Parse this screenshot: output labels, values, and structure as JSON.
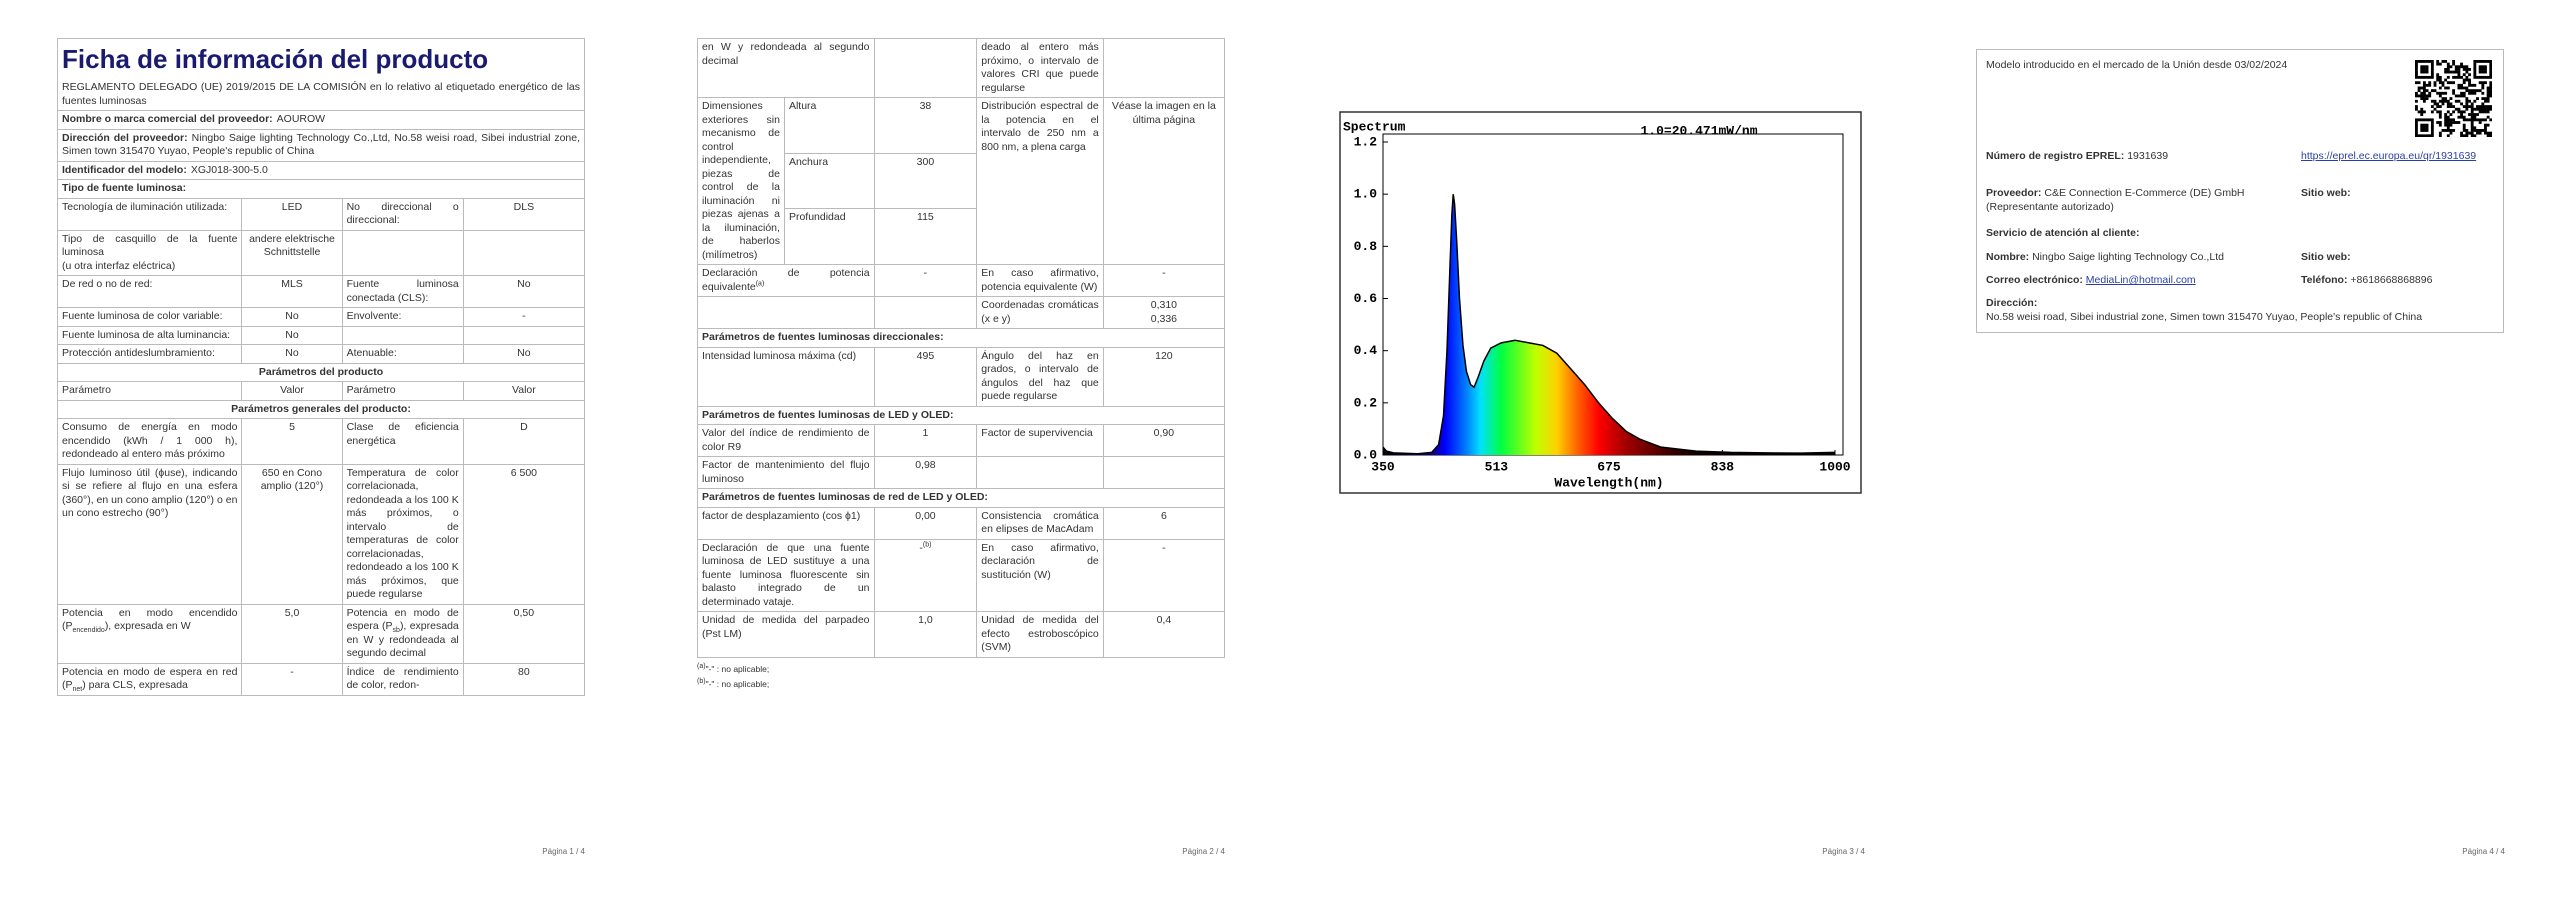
{
  "pages": [
    {
      "title": "Ficha de información del producto",
      "regulation": "REGLAMENTO DELEGADO (UE) 2019/2015 DE LA COMISIÓN en lo relativo al etiquetado energético de las fuentes luminosas",
      "fields": [
        {
          "label": "Nombre o marca comercial del proveedor:",
          "value": "AOUROW"
        },
        {
          "label": "Dirección del proveedor:",
          "value": "Ningbo Saige lighting Technology Co.,Ltd, No.58 weisi road, Sibei industrial zone, Simen town 315470 Yuyao, People's republic of China"
        },
        {
          "label": "Identificador del modelo:",
          "value": "XGJ018-300-5.0"
        }
      ],
      "section": "Tipo de fuente luminosa:",
      "rows": [
        [
          "Tecnología de iluminación utilizada:",
          "LED",
          "No direccional o direccional:",
          "DLS"
        ],
        [
          "Tipo de casquillo de la fuente luminosa\n(u otra interfaz eléctrica)",
          "andere elektrische Schnittstelle",
          null,
          null
        ],
        [
          "De red o no de red:",
          "MLS",
          "Fuente luminosa conectada (CLS):",
          "No"
        ],
        [
          "Fuente luminosa de color variable:",
          "No",
          "Envolvente:",
          "-"
        ],
        [
          "Fuente luminosa de alta luminancia:",
          "No",
          null,
          null
        ],
        [
          "Protección antideslumbramiento:",
          "No",
          "Atenuable:",
          "No"
        ],
        [
          "Parámetros del producto"
        ],
        [
          "Parámetro",
          "Valor",
          "Parámetro",
          "Valor"
        ],
        [
          "Parámetros generales del producto:"
        ],
        [
          "Consumo de energía en modo encendido (kWh / 1 000 h), redondeado al entero más próximo",
          "5",
          "Clase de eficiencia energética",
          "D"
        ],
        [
          "Flujo luminoso útil (ϕuse), indicando si se refiere al flujo en una esfera (360°), en un cono amplio (120°) o en un cono estrecho (90°)",
          "650 en Cono amplio (120°)",
          "Temperatura de color correlacionada, redondeada a los 100 K más próximos, o intervalo de temperaturas de color correlacionadas, redondeado a los 100 K más próximos, que puede regularse",
          "6 500"
        ],
        [
          [
            "Potencia en modo encendido (P",
            {
              "sub": "encendido"
            },
            "), expresada en W"
          ],
          "5,0",
          [
            "Potencia en modo de espera (P",
            {
              "sub": "sb"
            },
            "), expresada en W y redondeada al segundo decimal"
          ],
          "0,50"
        ],
        [
          [
            "Potencia en modo de espera en red (P",
            {
              "sub": "net"
            },
            ") para CLS, expresada"
          ],
          "-",
          "Índice de rendimiento de color, redon-",
          "80"
        ]
      ],
      "footer": "Página 1 / 4"
    },
    {
      "rows": [
        [
          "en W y redondeada al segundo decimal",
          null,
          "deado al entero más próximo, o intervalo de valores CRI que puede regularse",
          null
        ],
        {
          "label": "Dimensiones exteriores sin mecanismo de control independiente, piezas de control de la iluminación ni piezas ajenas a la iluminación, de haberlos (milímetros)",
          "dims": [
            {
              "name": "Altura",
              "value": "38"
            },
            {
              "name": "Anchura",
              "value": "300"
            },
            {
              "name": "Profundidad",
              "value": "115"
            }
          ],
          "param": "Distribución espectral de la potencia en el intervalo de 250 nm a 800 nm, a plena carga",
          "value": "Véase la imagen en la última página"
        },
        [
          [
            "Declaración de potencia equivalente",
            {
              "sup": "(a)"
            }
          ],
          "-",
          "En caso afirmativo, potencia equivalente (W)",
          "-"
        ],
        [
          null,
          null,
          "Coordenadas cromáticas (x e y)",
          "0,310\n0,336"
        ],
        [
          "Parámetros de fuentes luminosas direccionales:"
        ],
        [
          "Intensidad luminosa máxima (cd)",
          "495",
          "Ángulo del haz en grados, o intervalo de ángulos del haz que puede regularse",
          "120"
        ],
        [
          "Parámetros de fuentes luminosas de LED y OLED:"
        ],
        [
          "Valor del índice de rendimiento de color R9",
          "1",
          "Factor de supervivencia",
          "0,90"
        ],
        [
          "Factor de mantenimiento del flujo luminoso",
          "0,98",
          null,
          null
        ],
        [
          "Parámetros de fuentes luminosas de red de LED y OLED:"
        ],
        [
          "factor de desplazamiento (cos ϕ1)",
          "0,00",
          "Consistencia cromática en elipses de MacAdam",
          "6"
        ],
        [
          "Declaración de que una fuente luminosa de LED sustituye a una fuente luminosa fluorescente sin balasto integrado de un determinado vataje.",
          [
            "-",
            {
              "sup": "(b)"
            }
          ],
          "En caso afirmativo, declaración de sustitución (W)",
          "-"
        ],
        [
          "Unidad de medida del parpadeo (Pst LM)",
          "1,0",
          "Unidad de medida del efecto estroboscópico (SVM)",
          "0,4"
        ]
      ],
      "notes": [
        [
          {
            "sup": "(a)"
          },
          "\"-\" : no aplicable;"
        ],
        [
          {
            "sup": "(b)"
          },
          "\"-\" : no aplicable;"
        ]
      ],
      "footer": "Página 2 / 4"
    },
    {
      "footer": "Página 3 / 4"
    },
    {
      "intro": "Modelo introducido en el mercado de la Unión desde 03/02/2024",
      "registration": {
        "label": "Número de registro EPREL:",
        "value": "1931639",
        "link": "https://eprel.ec.europa.eu/qr/1931639"
      },
      "supplier": {
        "label": "Proveedor:",
        "value": "C&E Connection E-Commerce (DE) GmbH (Representante autorizado)",
        "website": "Sitio web:"
      },
      "customer_service": "Servicio de atención al cliente:",
      "name": {
        "label": "Nombre:",
        "value": "Ningbo Saige lighting Technology Co.,Ltd",
        "website": "Sitio web:"
      },
      "email": {
        "label": "Correo electrónico:",
        "value": "MediaLin@hotmail.com",
        "phone_label": "Teléfono:",
        "phone": "+8618668868896"
      },
      "address": {
        "label": "Dirección:",
        "value": "No.58 weisi road, Sibei industrial zone, Simen town 315470 Yuyao, People's republic of China"
      },
      "footer": "Página 4 / 4"
    }
  ],
  "chart_data": {
    "type": "area",
    "title": "Spectrum",
    "annotation": "1.0=20.471mW/nm",
    "x_label": "Wavelength(nm)",
    "x": [
      350,
      355,
      365,
      400,
      420,
      430,
      437,
      442,
      446,
      449,
      451,
      453,
      456,
      460,
      465,
      470,
      476,
      481,
      487,
      495,
      505,
      520,
      540,
      560,
      580,
      600,
      620,
      640,
      660,
      680,
      700,
      720,
      750,
      800,
      850,
      900,
      950,
      1000
    ],
    "values": [
      0.03,
      0.015,
      0.008,
      0.005,
      0.01,
      0.04,
      0.15,
      0.4,
      0.7,
      0.92,
      1.0,
      0.96,
      0.82,
      0.6,
      0.42,
      0.32,
      0.27,
      0.26,
      0.3,
      0.36,
      0.41,
      0.43,
      0.44,
      0.43,
      0.42,
      0.39,
      0.33,
      0.27,
      0.2,
      0.14,
      0.09,
      0.06,
      0.03,
      0.015,
      0.01,
      0.008,
      0.007,
      0.01
    ],
    "color": "#000000",
    "xlim": [
      350,
      1000
    ],
    "xticks": [
      350,
      513,
      675,
      838,
      1000
    ],
    "ylim": [
      0,
      1.2
    ],
    "yticks": [
      {
        "value": 0,
        "label": "0.0"
      },
      {
        "value": 0.2,
        "label": "0.2"
      },
      {
        "value": 0.4,
        "label": "0.4"
      },
      {
        "value": 0.6,
        "label": "0.6"
      },
      {
        "value": 0.8,
        "label": "0.8"
      },
      {
        "value": 1.0,
        "label": "1.0"
      },
      {
        "value": 1.2,
        "label": "1.2"
      }
    ]
  }
}
